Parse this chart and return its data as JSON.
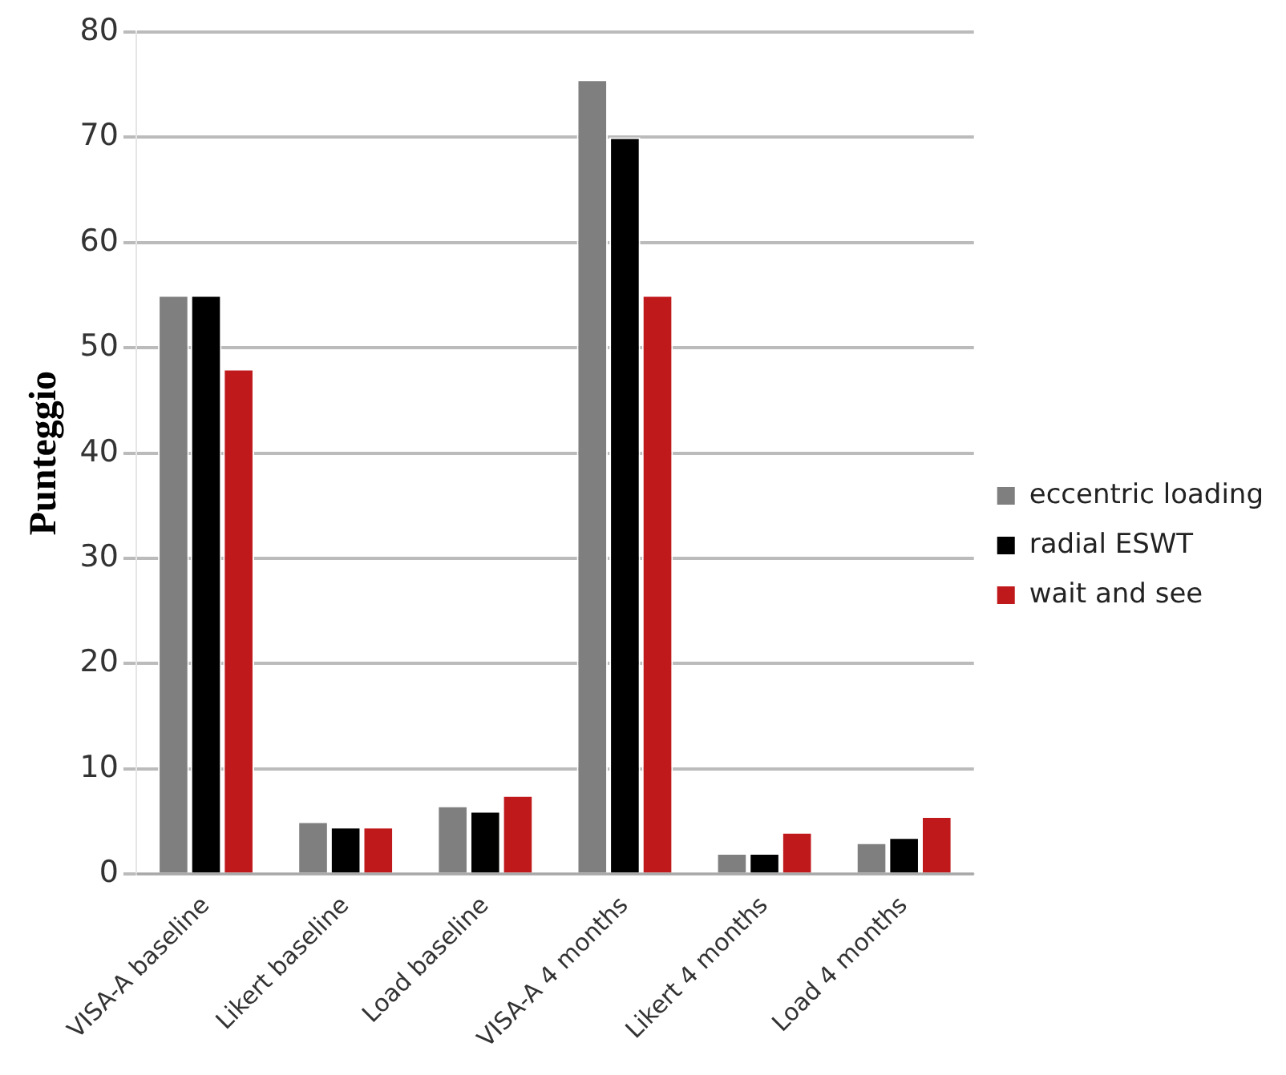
{
  "chart_data": {
    "type": "bar",
    "ylabel": "Punteggio",
    "categories": [
      "VISA-A baseline",
      "Likert baseline",
      "Load baseline",
      "VISA-A 4 months",
      "Likert 4 months",
      "Load 4 months"
    ],
    "series": [
      {
        "name": "eccentric loading",
        "color": "#7f7f7f",
        "values": [
          55,
          5,
          6.5,
          75.5,
          2,
          3
        ]
      },
      {
        "name": "radial ESWT",
        "color": "#000000",
        "values": [
          55,
          4.5,
          6,
          70,
          2,
          3.5
        ]
      },
      {
        "name": "wait and see",
        "color": "#c0191c",
        "values": [
          48,
          4.5,
          7.5,
          55,
          4,
          5.5
        ]
      }
    ],
    "ylim": [
      0,
      80
    ],
    "yticks": [
      0,
      10,
      20,
      30,
      40,
      50,
      60,
      70,
      80
    ],
    "grid": "y",
    "legend": "right"
  }
}
